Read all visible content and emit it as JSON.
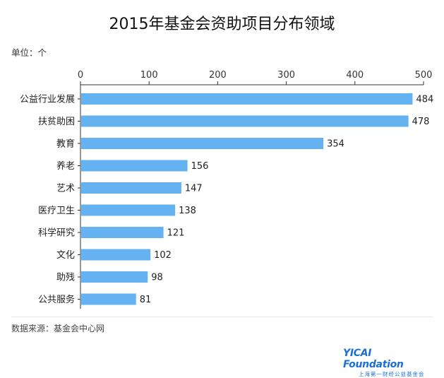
{
  "title": "2015年基金会资助项目分布领域",
  "unit_label": "单位：个",
  "source_label": "数据来源：基金会中心网",
  "logo": {
    "text_main": "YICAI Foundation",
    "text_sub": "上海第一财经公益基金会"
  },
  "colors": {
    "bar": "#64b2f2",
    "axis": "#333333"
  },
  "chart_data": {
    "type": "bar",
    "orientation": "horizontal",
    "title": "2015年基金会资助项目分布领域",
    "xlabel": "",
    "ylabel": "",
    "unit": "单位：个",
    "xlim": [
      0,
      500
    ],
    "ticks": [
      0,
      100,
      200,
      300,
      400,
      500
    ],
    "tick_labels": [
      "0",
      "100",
      "200",
      "300",
      "400",
      "500"
    ],
    "axis_position": "top",
    "grid": false,
    "categories": [
      "公益行业发展",
      "扶贫助困",
      "教育",
      "养老",
      "艺术",
      "医疗卫生",
      "科学研究",
      "文化",
      "助残",
      "公共服务"
    ],
    "values": [
      484,
      478,
      354,
      156,
      147,
      138,
      121,
      102,
      98,
      81
    ],
    "value_labels": [
      "484",
      "478",
      "354",
      "156",
      "147",
      "138",
      "121",
      "102",
      "98",
      "81"
    ]
  }
}
